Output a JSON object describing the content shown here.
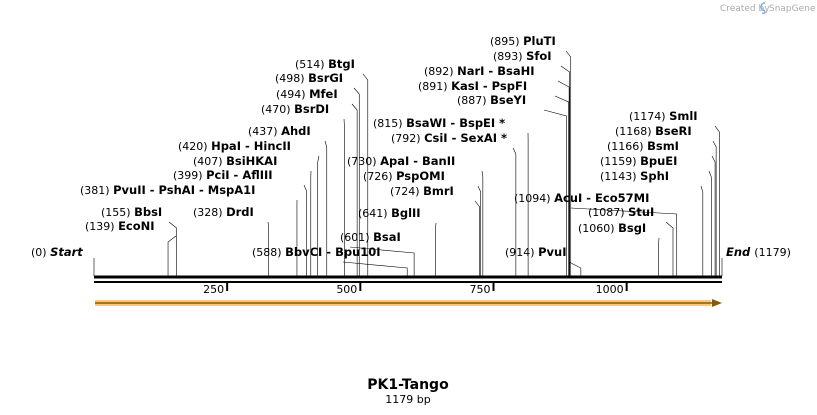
{
  "brand": {
    "created_by": "Created by",
    "name": "SnapGene"
  },
  "plasmid": {
    "name": "PK1-Tango",
    "size_label": "1179 bp",
    "length": 1179
  },
  "ruler_ticks": [
    "250",
    "500",
    "750",
    "1000"
  ],
  "ends": {
    "start": {
      "pos": "(0)",
      "name": "Start"
    },
    "end": {
      "pos": "(1179)",
      "name": "End"
    }
  },
  "sites": [
    {
      "pos": "(139)",
      "parts": [
        "EcoNI"
      ]
    },
    {
      "pos": "(155)",
      "parts": [
        "BbsI"
      ]
    },
    {
      "pos": "(328)",
      "parts": [
        "DrdI"
      ]
    },
    {
      "pos": "(381)",
      "parts": [
        "PvuII",
        "PshAI",
        "MspA1I"
      ]
    },
    {
      "pos": "(399)",
      "parts": [
        "PciI",
        "AflIII"
      ]
    },
    {
      "pos": "(407)",
      "parts": [
        "BsiHKAI"
      ]
    },
    {
      "pos": "(420)",
      "parts": [
        "HpaI",
        "HincII"
      ]
    },
    {
      "pos": "(437)",
      "parts": [
        "AhdI"
      ]
    },
    {
      "pos": "(470)",
      "parts": [
        "BsrDI"
      ]
    },
    {
      "pos": "(494)",
      "parts": [
        "MfeI"
      ]
    },
    {
      "pos": "(498)",
      "parts": [
        "BsrGI"
      ]
    },
    {
      "pos": "(514)",
      "parts": [
        "BtgI"
      ]
    },
    {
      "pos": "(588)",
      "parts": [
        "BbvCI",
        "Bpu10I"
      ]
    },
    {
      "pos": "(601)",
      "parts": [
        "BsaI"
      ]
    },
    {
      "pos": "(641)",
      "parts": [
        "BglII"
      ]
    },
    {
      "pos": "(724)",
      "parts": [
        "BmrI"
      ]
    },
    {
      "pos": "(726)",
      "parts": [
        "PspOMI"
      ]
    },
    {
      "pos": "(730)",
      "parts": [
        "ApaI",
        "BanII"
      ]
    },
    {
      "pos": "(792)",
      "parts": [
        "CsiI",
        "SexAI *"
      ]
    },
    {
      "pos": "(815)",
      "parts": [
        "BsaWI",
        "BspEI *"
      ]
    },
    {
      "pos": "(887)",
      "parts": [
        "BseYI"
      ]
    },
    {
      "pos": "(891)",
      "parts": [
        "KasI",
        "PspFI"
      ]
    },
    {
      "pos": "(892)",
      "parts": [
        "NarI",
        "BsaHI"
      ]
    },
    {
      "pos": "(893)",
      "parts": [
        "SfoI"
      ]
    },
    {
      "pos": "(895)",
      "parts": [
        "PluTI"
      ]
    },
    {
      "pos": "(914)",
      "parts": [
        "PvuI"
      ]
    },
    {
      "pos": "(1094)",
      "parts": [
        "AcuI",
        "Eco57MI"
      ]
    },
    {
      "pos": "(1060)",
      "parts": [
        "BsgI"
      ]
    },
    {
      "pos": "(1087)",
      "parts": [
        "StuI"
      ]
    },
    {
      "pos": "(1143)",
      "parts": [
        "SphI"
      ]
    },
    {
      "pos": "(1159)",
      "parts": [
        "BpuEI"
      ]
    },
    {
      "pos": "(1166)",
      "parts": [
        "BsmI"
      ]
    },
    {
      "pos": "(1168)",
      "parts": [
        "BseRI"
      ]
    },
    {
      "pos": "(1174)",
      "parts": [
        "SmlI"
      ]
    }
  ]
}
